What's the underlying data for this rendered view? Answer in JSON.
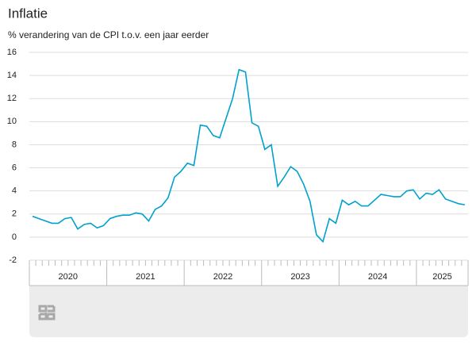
{
  "chart_data": {
    "type": "line",
    "title": "Inflatie",
    "subtitle": "% verandering van de CPI t.o.v. een jaar eerder",
    "years": [
      {
        "label": "2020",
        "months": 12
      },
      {
        "label": "2021",
        "months": 12
      },
      {
        "label": "2022",
        "months": 12
      },
      {
        "label": "2023",
        "months": 12
      },
      {
        "label": "2024",
        "months": 12
      },
      {
        "label": "2025",
        "months": 8
      }
    ],
    "values": [
      1.8,
      1.6,
      1.4,
      1.2,
      1.2,
      1.6,
      1.7,
      0.7,
      1.1,
      1.2,
      0.8,
      1.0,
      1.6,
      1.8,
      1.9,
      1.9,
      2.1,
      2.0,
      1.4,
      2.4,
      2.7,
      3.4,
      5.2,
      5.7,
      6.4,
      6.2,
      9.7,
      9.6,
      8.8,
      8.6,
      10.3,
      12.0,
      14.5,
      14.3,
      9.9,
      9.6,
      7.6,
      8.0,
      4.4,
      5.2,
      6.1,
      5.7,
      4.6,
      3.1,
      0.2,
      -0.4,
      1.6,
      1.2,
      3.2,
      2.8,
      3.1,
      2.7,
      2.7,
      3.2,
      3.7,
      3.6,
      3.5,
      3.5,
      4.0,
      4.1,
      3.3,
      3.8,
      3.7,
      4.1,
      3.3,
      3.1,
      2.9,
      2.8
    ],
    "color": "#00a1cd",
    "ylim": [
      -2,
      16
    ],
    "yticks": [
      -2,
      0,
      2,
      4,
      6,
      8,
      10,
      12,
      14,
      16
    ],
    "grid": true
  }
}
